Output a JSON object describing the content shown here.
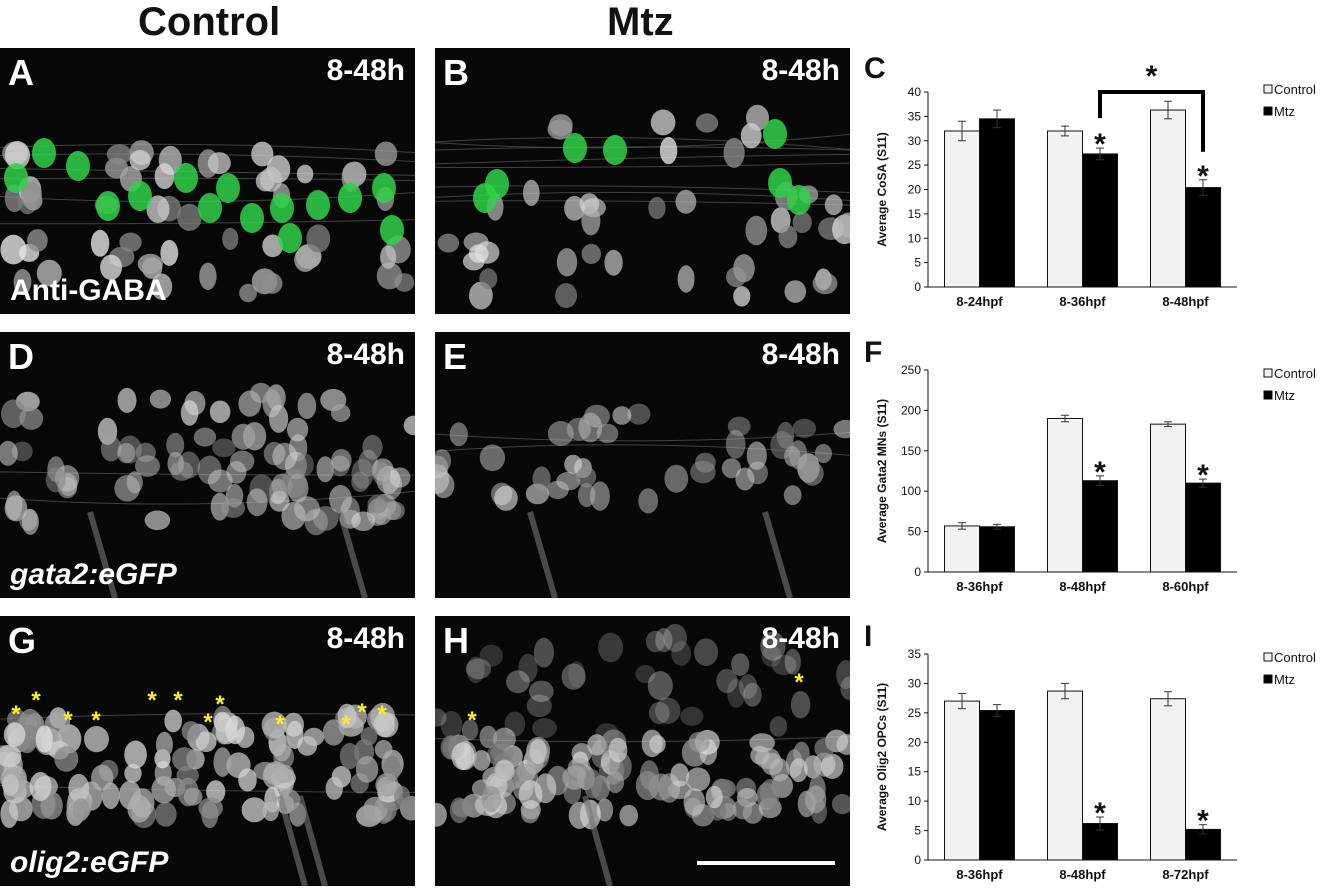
{
  "columns": [
    "Control",
    "Mtz"
  ],
  "panels": [
    {
      "label": "A",
      "time": "8-48h",
      "tag": "Anti-GABA",
      "italic": false,
      "green": true,
      "seed": 11,
      "stars": []
    },
    {
      "label": "B",
      "time": "8-48h",
      "tag": "",
      "italic": false,
      "green": true,
      "seed": 27,
      "stars": []
    },
    {
      "label": "D",
      "time": "8-48h",
      "tag": "gata2:eGFP",
      "italic": true,
      "green": false,
      "seed": 41,
      "stars": []
    },
    {
      "label": "E",
      "time": "8-48h",
      "tag": "",
      "italic": false,
      "green": false,
      "seed": 53,
      "stars": []
    },
    {
      "label": "G",
      "time": "8-48h",
      "tag": "olig2:eGFP",
      "italic": true,
      "green": false,
      "seed": 67,
      "stars": [
        "*",
        "*",
        "*",
        "*",
        "*",
        "*",
        "*",
        "*",
        "*",
        "*",
        "*",
        "*"
      ]
    },
    {
      "label": "H",
      "time": "8-48h",
      "tag": "",
      "italic": false,
      "green": false,
      "seed": 79,
      "stars": [
        "*",
        "*"
      ]
    }
  ],
  "colors": {
    "control": "#f2f2f2",
    "mtz": "#000000",
    "green_cell": "#2fd24a",
    "star": "#ffee22"
  },
  "chart_data": [
    {
      "panel": "C",
      "type": "bar",
      "categories": [
        "8-24hpf",
        "8-36hpf",
        "8-48hpf"
      ],
      "ylabel": "Average CoSA (S11)",
      "ylim": [
        0,
        40
      ],
      "yticks": [
        0,
        5,
        10,
        15,
        20,
        25,
        30,
        35,
        40
      ],
      "series": [
        {
          "name": "Control",
          "values": [
            32,
            32,
            36.3
          ],
          "errors": [
            2,
            1,
            1.8
          ]
        },
        {
          "name": "Mtz",
          "values": [
            34.5,
            27.3,
            20.4
          ],
          "errors": [
            1.8,
            1.2,
            1.6
          ]
        }
      ],
      "significance": [
        {
          "category": 1,
          "series": 1,
          "mark": "*"
        },
        {
          "category": 2,
          "series": 1,
          "mark": "*"
        }
      ],
      "bracket": {
        "from_category": 1,
        "to_category": 2,
        "series": 1,
        "mark": "*"
      }
    },
    {
      "panel": "F",
      "type": "bar",
      "categories": [
        "8-36hpf",
        "8-48hpf",
        "8-60hpf"
      ],
      "ylabel": "Average Gata2 MNs (S11)",
      "ylim": [
        0,
        250
      ],
      "yticks": [
        0,
        50,
        100,
        150,
        200,
        250
      ],
      "series": [
        {
          "name": "Control",
          "values": [
            57,
            190,
            183
          ],
          "errors": [
            4,
            4,
            3
          ]
        },
        {
          "name": "Mtz",
          "values": [
            56,
            113,
            110
          ],
          "errors": [
            3,
            6,
            5
          ]
        }
      ],
      "significance": [
        {
          "category": 1,
          "series": 1,
          "mark": "*"
        },
        {
          "category": 2,
          "series": 1,
          "mark": "*"
        }
      ]
    },
    {
      "panel": "I",
      "type": "bar",
      "categories": [
        "8-36hpf",
        "8-48hpf",
        "8-72hpf"
      ],
      "ylabel": "Average Olig2 OPCs (S11)",
      "ylim": [
        0,
        35
      ],
      "yticks": [
        0,
        5,
        10,
        15,
        20,
        25,
        30,
        35
      ],
      "series": [
        {
          "name": "Control",
          "values": [
            27,
            28.7,
            27.4
          ],
          "errors": [
            1.3,
            1.3,
            1.2
          ]
        },
        {
          "name": "Mtz",
          "values": [
            25.4,
            6.2,
            5.2
          ],
          "errors": [
            1,
            1.1,
            0.8
          ]
        }
      ],
      "significance": [
        {
          "category": 1,
          "series": 1,
          "mark": "*"
        },
        {
          "category": 2,
          "series": 1,
          "mark": "*"
        }
      ]
    }
  ]
}
